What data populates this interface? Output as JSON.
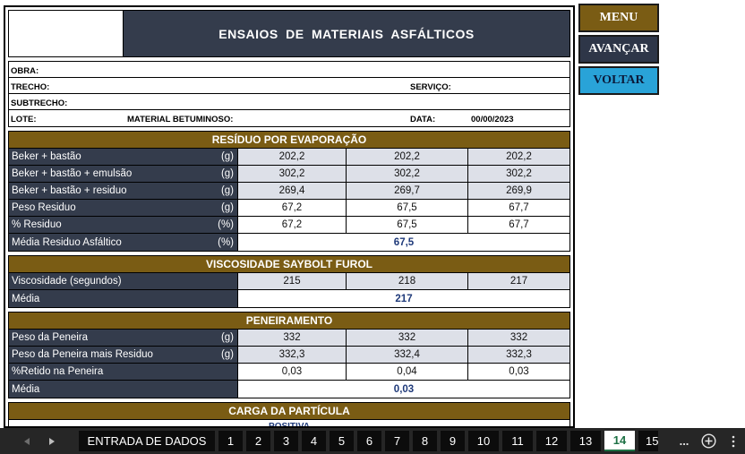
{
  "header": {
    "title": "ENSAIOS  DE  MATERIAIS  ASFÁLTICOS"
  },
  "info": {
    "obra_label": "OBRA:",
    "trecho_label": "TRECHO:",
    "servico_label": "SERVIÇO:",
    "subtrecho_label": "SUBTRECHO:",
    "lote_label": "LOTE:",
    "material_label": "MATERIAL  BETUMINOSO:",
    "data_label": "DATA:",
    "data_value": "00/00/2023"
  },
  "residuo": {
    "title": "RESÍDUO POR EVAPORAÇÃO",
    "rows": [
      {
        "label": "Beker + bastão",
        "unit": "(g)",
        "v": [
          "202,2",
          "202,2",
          "202,2"
        ]
      },
      {
        "label": "Beker + bastão  + emulsão",
        "unit": "(g)",
        "v": [
          "302,2",
          "302,2",
          "302,2"
        ]
      },
      {
        "label": "Beker + bastão + residuo",
        "unit": "(g)",
        "v": [
          "269,4",
          "269,7",
          "269,9"
        ]
      },
      {
        "label": "Peso  Residuo",
        "unit": "(g)",
        "v": [
          "67,2",
          "67,5",
          "67,7"
        ]
      },
      {
        "label": "%  Residuo",
        "unit": "(%)",
        "v": [
          "67,2",
          "67,5",
          "67,7"
        ]
      }
    ],
    "media_label": "Média Residuo  Asfáltico",
    "media_unit": "(%)",
    "media_value": "67,5"
  },
  "viscosidade": {
    "title": "VISCOSIDADE SAYBOLT FUROL",
    "row_label": "Viscosidade (segundos)",
    "v": [
      "215",
      "218",
      "217"
    ],
    "media_label": "Média",
    "media_value": "217"
  },
  "peneiramento": {
    "title": "PENEIRAMENTO",
    "rows": [
      {
        "label": "Peso da Peneira",
        "unit": "(g)",
        "v": [
          "332",
          "332",
          "332"
        ]
      },
      {
        "label": "Peso da Peneira mais Residuo",
        "unit": "(g)",
        "v": [
          "332,3",
          "332,4",
          "332,3"
        ]
      },
      {
        "label": "%Retido na Peneira",
        "unit": "",
        "v": [
          "0,03",
          "0,04",
          "0,03"
        ]
      }
    ],
    "media_label": "Média",
    "media_value": "0,03"
  },
  "carga": {
    "title": "CARGA DA PARTÍCULA",
    "result": "POSITIVA"
  },
  "buttons": {
    "menu": "MENU",
    "avancar": "AVANÇAR",
    "voltar": "VOLTAR"
  },
  "tabs": {
    "entrada": "ENTRADA DE DADOS",
    "numbers": [
      "1",
      "2",
      "3",
      "4",
      "5",
      "6",
      "7",
      "8",
      "9",
      "10",
      "11",
      "12",
      "13",
      "14",
      "15"
    ],
    "active": "14",
    "more": "..."
  },
  "icons": {
    "prev": "triangle-left-icon",
    "next": "triangle-right-icon",
    "add": "plus-circle-icon",
    "options": "vertical-ellipsis-icon"
  },
  "colors": {
    "title_bg": "#343c4c",
    "section_bg": "#7a5c14",
    "voltar_bg": "#29a3d8",
    "active_tab": "#1e7145"
  }
}
